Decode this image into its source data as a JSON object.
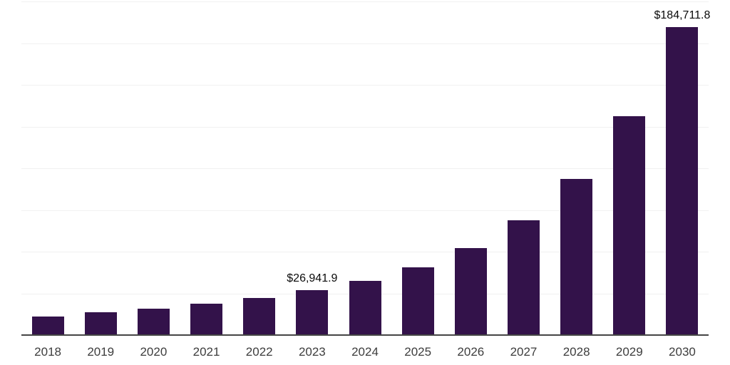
{
  "chart_data": {
    "type": "bar",
    "title": "",
    "xlabel": "",
    "ylabel": "",
    "categories": [
      "2018",
      "2019",
      "2020",
      "2021",
      "2022",
      "2023",
      "2024",
      "2025",
      "2026",
      "2027",
      "2028",
      "2029",
      "2030"
    ],
    "values": [
      11300,
      13800,
      15900,
      18800,
      22300,
      26941.9,
      32400,
      40600,
      52100,
      68700,
      93600,
      131300,
      184711.8
    ],
    "value_labels": {
      "2023": "$26,941.9",
      "2030": "$184,711.8"
    },
    "ylim": [
      0,
      200000
    ],
    "gridline_step": 25000,
    "grid": "horizontal",
    "legend_position": "none",
    "colors": {
      "background": "#ffffff",
      "bar": "#33124a",
      "gridline": "#f1f1f1",
      "axis_line": "#454545",
      "tick_label": "#3d3d3d",
      "value_label": "#0a0a0a"
    }
  }
}
